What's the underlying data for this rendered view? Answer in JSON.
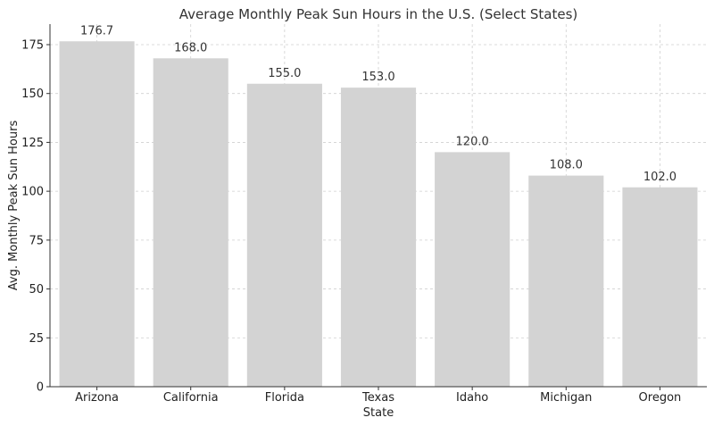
{
  "chart_data": {
    "type": "bar",
    "title": "Average Monthly Peak Sun Hours in the U.S. (Select States)",
    "xlabel": "State",
    "ylabel": "Avg. Monthly Peak Sun Hours",
    "categories": [
      "Arizona",
      "California",
      "Florida",
      "Texas",
      "Idaho",
      "Michigan",
      "Oregon"
    ],
    "values": [
      176.7,
      168.0,
      155.0,
      153.0,
      120.0,
      108.0,
      102.0
    ],
    "data_labels": [
      "176.7",
      "168.0",
      "155.0",
      "153.0",
      "120.0",
      "108.0",
      "102.0"
    ],
    "ylim": [
      0,
      185.5
    ],
    "yticks": [
      0,
      25,
      50,
      75,
      100,
      125,
      150,
      175
    ],
    "grid": true,
    "colors": {
      "bar": "#d3d3d3"
    }
  }
}
